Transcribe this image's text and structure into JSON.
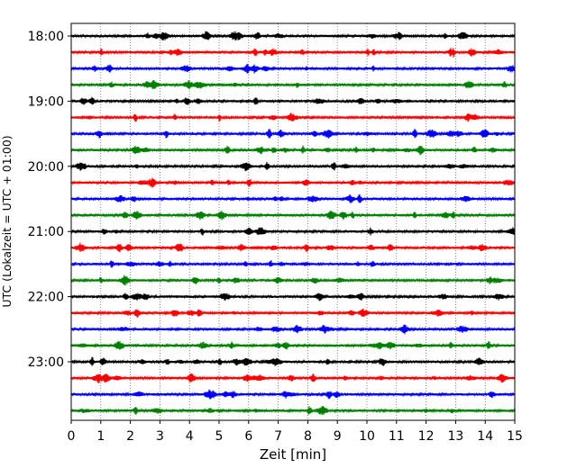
{
  "chart_data": {
    "type": "line",
    "title": "",
    "xlabel": "Zeit  [min]",
    "ylabel": "UTC (Lokalzeit = UTC + 01:00)",
    "xlim": [
      0,
      15
    ],
    "x_ticks": [
      "0",
      "1",
      "2",
      "3",
      "4",
      "5",
      "6",
      "7",
      "8",
      "9",
      "10",
      "11",
      "12",
      "13",
      "14",
      "15"
    ],
    "y_ticks": [
      "18:00",
      "19:00",
      "20:00",
      "21:00",
      "22:00",
      "23:00"
    ],
    "grid": "vertical dotted at each minute",
    "trace_colors": [
      "#000000",
      "#ff0000",
      "#0000ff",
      "#008000"
    ],
    "traces": [
      {
        "start": "18:00",
        "color": "#000000"
      },
      {
        "start": "18:15",
        "color": "#ff0000"
      },
      {
        "start": "18:30",
        "color": "#0000ff"
      },
      {
        "start": "18:45",
        "color": "#008000"
      },
      {
        "start": "19:00",
        "color": "#000000"
      },
      {
        "start": "19:15",
        "color": "#ff0000"
      },
      {
        "start": "19:30",
        "color": "#0000ff"
      },
      {
        "start": "19:45",
        "color": "#008000"
      },
      {
        "start": "20:00",
        "color": "#000000"
      },
      {
        "start": "20:15",
        "color": "#ff0000"
      },
      {
        "start": "20:30",
        "color": "#0000ff"
      },
      {
        "start": "20:45",
        "color": "#008000"
      },
      {
        "start": "21:00",
        "color": "#000000"
      },
      {
        "start": "21:15",
        "color": "#ff0000"
      },
      {
        "start": "21:30",
        "color": "#0000ff"
      },
      {
        "start": "21:45",
        "color": "#008000"
      },
      {
        "start": "22:00",
        "color": "#000000"
      },
      {
        "start": "22:15",
        "color": "#ff0000"
      },
      {
        "start": "22:30",
        "color": "#0000ff"
      },
      {
        "start": "22:45",
        "color": "#008000"
      },
      {
        "start": "23:00",
        "color": "#000000"
      },
      {
        "start": "23:15",
        "color": "#ff0000"
      },
      {
        "start": "23:30",
        "color": "#0000ff"
      },
      {
        "start": "23:45",
        "color": "#008000"
      }
    ]
  }
}
